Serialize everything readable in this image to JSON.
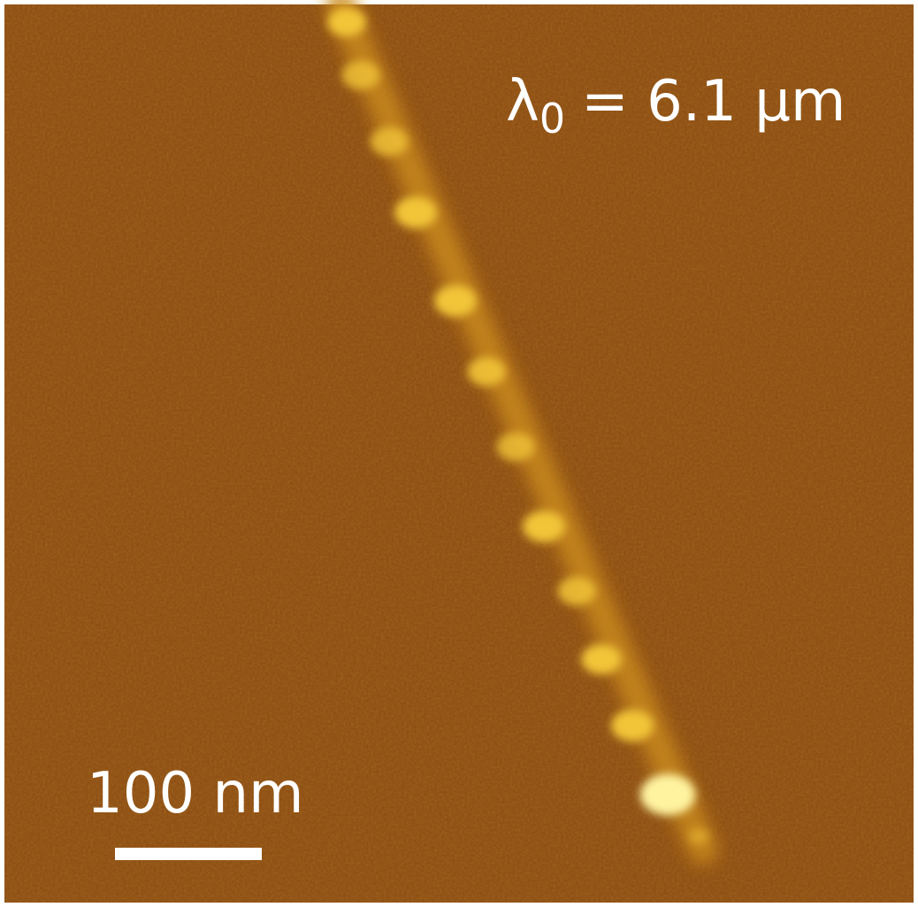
{
  "annotation": {
    "symbol": "λ",
    "subscript": "0",
    "text": "= 6.1 µm"
  },
  "scale_bar": {
    "label": "100 nm"
  }
}
